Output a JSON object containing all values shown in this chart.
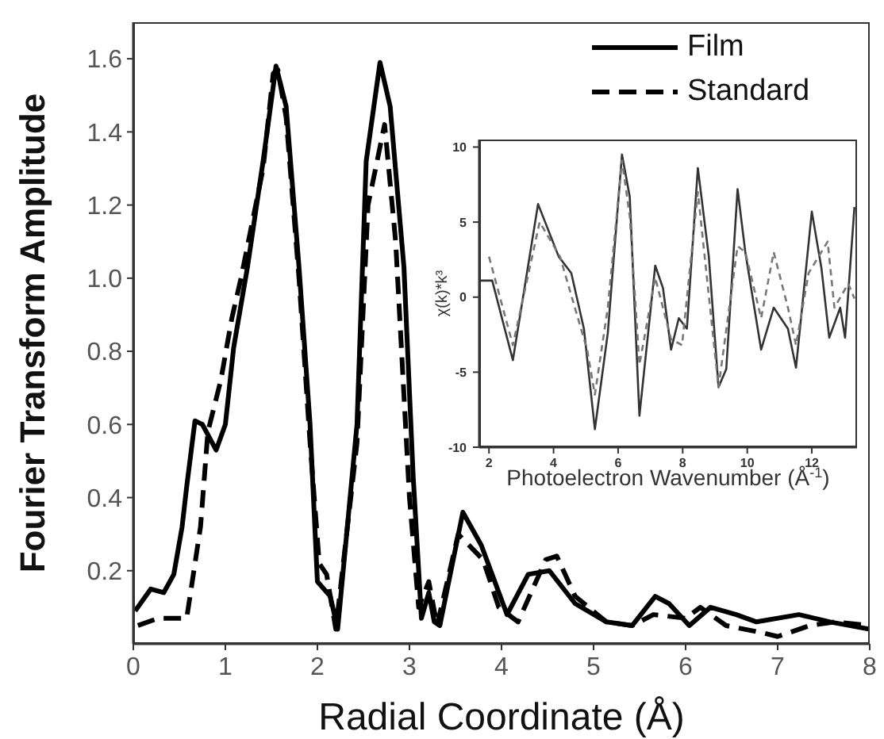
{
  "chart_data": [
    {
      "type": "line",
      "xlabel": "Radial Coordinate (Å)",
      "ylabel": "Fourier Transform Amplitude",
      "xlim": [
        0,
        8
      ],
      "xticks": [
        0,
        1,
        2,
        3,
        4,
        5,
        6,
        7,
        8
      ],
      "ylim": [
        0,
        1.7
      ],
      "yticks": [
        0.2,
        0.4,
        0.6,
        0.8,
        {
          "value": 1,
          "label": "1.0"
        },
        1.2,
        1.4,
        1.6
      ],
      "legend": "top right",
      "series": [
        {
          "name": "Film",
          "color": "#000000",
          "line_style": "solid",
          "x": [
            0.02,
            0.19,
            0.33,
            0.44,
            0.53,
            0.58,
            0.67,
            0.75,
            0.9,
            1.0,
            1.09,
            1.24,
            1.41,
            1.55,
            1.66,
            1.8,
            1.92,
            2.0,
            2.14,
            2.22,
            2.43,
            2.53,
            2.68,
            2.79,
            2.94,
            3.04,
            3.13,
            3.21,
            3.27,
            3.33,
            3.58,
            3.78,
            4.06,
            4.29,
            4.52,
            4.8,
            5.14,
            5.42,
            5.67,
            5.82,
            6.04,
            6.27,
            6.55,
            6.77,
            7.23,
            7.57,
            8.0
          ],
          "values": [
            0.09,
            0.15,
            0.14,
            0.19,
            0.32,
            0.43,
            0.61,
            0.6,
            0.53,
            0.6,
            0.81,
            1.03,
            1.32,
            1.58,
            1.47,
            1.03,
            0.6,
            0.17,
            0.13,
            0.04,
            0.6,
            1.32,
            1.59,
            1.47,
            1.03,
            0.46,
            0.07,
            0.14,
            0.06,
            0.05,
            0.36,
            0.27,
            0.08,
            0.19,
            0.2,
            0.11,
            0.06,
            0.05,
            0.13,
            0.11,
            0.05,
            0.1,
            0.08,
            0.06,
            0.08,
            0.06,
            0.04
          ]
        },
        {
          "name": "Standard",
          "color": "#000000",
          "line_style": "dashed",
          "x": [
            0.05,
            0.27,
            0.58,
            0.73,
            0.81,
            0.95,
            1.07,
            1.17,
            1.41,
            1.52,
            1.57,
            1.66,
            1.8,
            1.92,
            2.02,
            2.1,
            2.2,
            2.43,
            2.55,
            2.73,
            2.85,
            3.0,
            3.1,
            3.21,
            3.3,
            3.53,
            3.8,
            3.97,
            4.18,
            4.48,
            4.6,
            4.8,
            5.14,
            5.42,
            5.65,
            6.0,
            6.16,
            6.44,
            6.84,
            7.0,
            7.35,
            7.62,
            8.0
          ],
          "values": [
            0.05,
            0.07,
            0.07,
            0.32,
            0.58,
            0.72,
            0.89,
            1.0,
            1.3,
            1.56,
            1.57,
            1.44,
            1.0,
            0.55,
            0.22,
            0.19,
            0.04,
            0.55,
            1.2,
            1.42,
            1.1,
            0.4,
            0.1,
            0.17,
            0.05,
            0.3,
            0.23,
            0.1,
            0.06,
            0.23,
            0.24,
            0.13,
            0.06,
            0.05,
            0.08,
            0.07,
            0.1,
            0.05,
            0.03,
            0.02,
            0.05,
            0.06,
            0.05
          ]
        }
      ]
    },
    {
      "type": "line",
      "xlabel": "Photoelectron Wavenumber (Å$^{-1}$)",
      "ylabel": "χ(k)*k³",
      "xlim": [
        1.7,
        13.4
      ],
      "xticks": [
        2,
        4,
        6,
        8,
        10,
        12
      ],
      "ylim": [
        -10,
        10.5
      ],
      "yticks": [
        -10,
        -5,
        0,
        5,
        10
      ],
      "series": [
        {
          "color": "#333333",
          "line_style": "solid",
          "x": [
            1.75,
            2.1,
            2.74,
            3.52,
            4.16,
            4.55,
            4.94,
            5.28,
            5.68,
            6.12,
            6.36,
            6.66,
            7.15,
            7.39,
            7.64,
            7.88,
            8.13,
            8.47,
            8.81,
            9.11,
            9.35,
            9.7,
            9.94,
            10.43,
            10.82,
            11.26,
            11.51,
            12.0,
            12.3,
            12.54,
            12.88,
            13.03,
            13.32
          ],
          "values": [
            1.1,
            1.1,
            -4.2,
            6.2,
            2.7,
            1.6,
            -2.1,
            -8.8,
            -2.4,
            9.5,
            6.7,
            -7.9,
            2.1,
            0.6,
            -3.5,
            -1.4,
            -2.1,
            8.6,
            2.7,
            -6.0,
            -4.8,
            7.2,
            3.0,
            -3.5,
            -0.7,
            -2.1,
            -4.7,
            5.7,
            1.9,
            -2.7,
            -0.7,
            -2.7,
            6.0
          ]
        },
        {
          "color": "#777777",
          "line_style": "dashed",
          "x": [
            2.0,
            2.74,
            3.57,
            4.2,
            5.04,
            5.28,
            5.68,
            6.12,
            6.36,
            6.66,
            7.15,
            7.64,
            7.98,
            8.47,
            9.11,
            9.7,
            9.94,
            10.43,
            10.82,
            11.26,
            11.51,
            11.9,
            12.49,
            12.7,
            13.13,
            13.32
          ],
          "values": [
            2.7,
            -3.2,
            5.0,
            2.7,
            -3.5,
            -6.5,
            -0.7,
            9.1,
            5.4,
            -4.5,
            1.3,
            -2.8,
            -3.2,
            7.0,
            -6.0,
            3.4,
            3.0,
            -1.4,
            3.0,
            -0.7,
            -3.2,
            1.6,
            3.7,
            -0.7,
            0.9,
            -0.1
          ]
        }
      ]
    }
  ]
}
